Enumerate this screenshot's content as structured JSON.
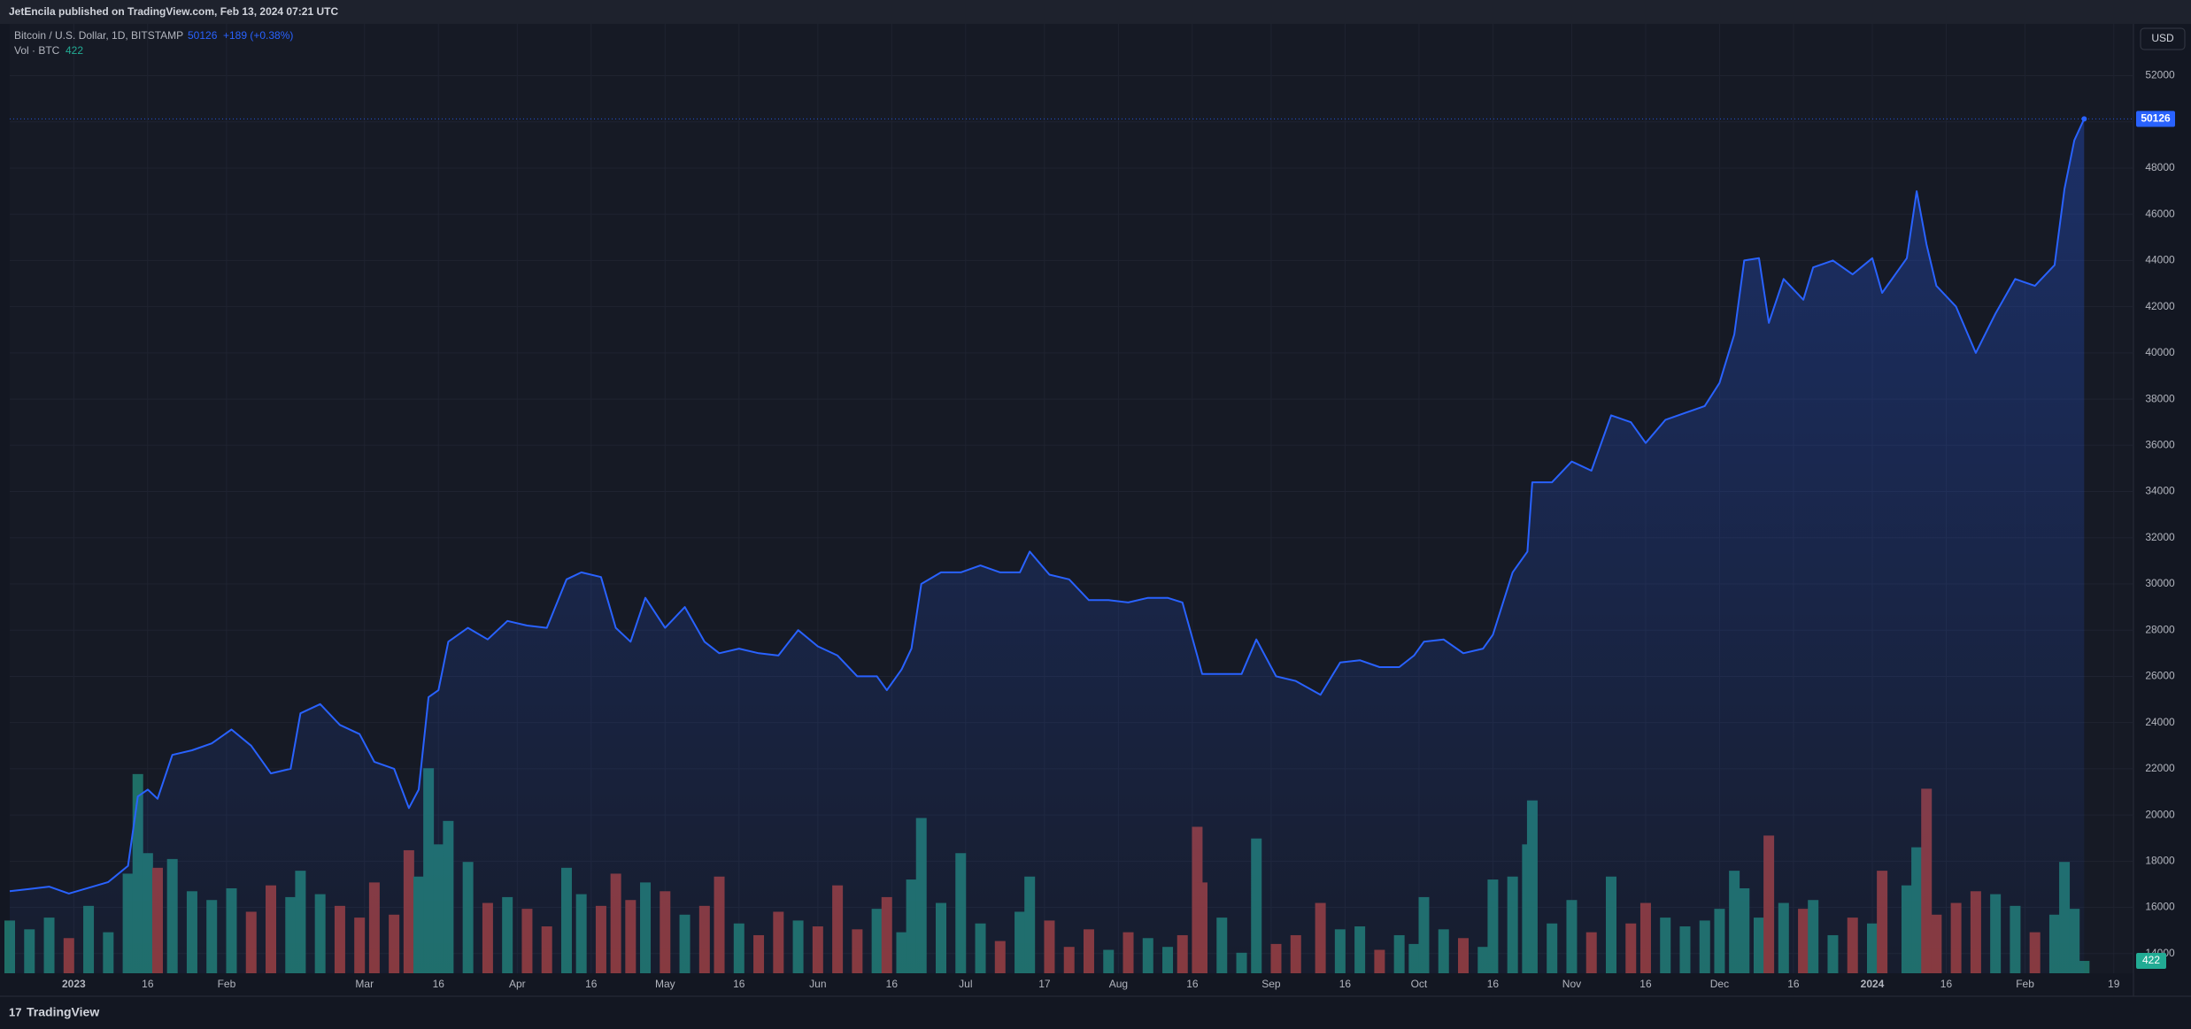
{
  "header": "JetEncila published on TradingView.com, Feb 13, 2024 07:21 UTC",
  "change": "+189 (+0.38%)",
  "currency": "USD",
  "footer": "TradingView",
  "chart_data": {
    "type": "area",
    "grid": true,
    "x": [
      "2022-12-19",
      "2022-12-23",
      "2022-12-27",
      "2022-12-31",
      "2023-01-04",
      "2023-01-08",
      "2023-01-12",
      "2023-01-14",
      "2023-01-16",
      "2023-01-18",
      "2023-01-21",
      "2023-01-25",
      "2023-01-29",
      "2023-02-02",
      "2023-02-06",
      "2023-02-10",
      "2023-02-14",
      "2023-02-16",
      "2023-02-20",
      "2023-02-24",
      "2023-02-28",
      "2023-03-03",
      "2023-03-07",
      "2023-03-10",
      "2023-03-12",
      "2023-03-14",
      "2023-03-16",
      "2023-03-18",
      "2023-03-22",
      "2023-03-26",
      "2023-03-30",
      "2023-04-03",
      "2023-04-07",
      "2023-04-11",
      "2023-04-14",
      "2023-04-18",
      "2023-04-21",
      "2023-04-24",
      "2023-04-27",
      "2023-05-01",
      "2023-05-05",
      "2023-05-09",
      "2023-05-12",
      "2023-05-16",
      "2023-05-20",
      "2023-05-24",
      "2023-05-28",
      "2023-06-01",
      "2023-06-05",
      "2023-06-09",
      "2023-06-13",
      "2023-06-15",
      "2023-06-18",
      "2023-06-20",
      "2023-06-22",
      "2023-06-26",
      "2023-06-30",
      "2023-07-04",
      "2023-07-08",
      "2023-07-12",
      "2023-07-14",
      "2023-07-18",
      "2023-07-22",
      "2023-07-26",
      "2023-07-30",
      "2023-08-03",
      "2023-08-07",
      "2023-08-11",
      "2023-08-14",
      "2023-08-17",
      "2023-08-18",
      "2023-08-22",
      "2023-08-26",
      "2023-08-29",
      "2023-09-02",
      "2023-09-06",
      "2023-09-11",
      "2023-09-15",
      "2023-09-19",
      "2023-09-23",
      "2023-09-27",
      "2023-09-30",
      "2023-10-02",
      "2023-10-06",
      "2023-10-10",
      "2023-10-14",
      "2023-10-16",
      "2023-10-20",
      "2023-10-23",
      "2023-10-24",
      "2023-10-28",
      "2023-11-01",
      "2023-11-05",
      "2023-11-09",
      "2023-11-13",
      "2023-11-16",
      "2023-11-20",
      "2023-11-24",
      "2023-11-28",
      "2023-12-01",
      "2023-12-04",
      "2023-12-06",
      "2023-12-09",
      "2023-12-11",
      "2023-12-14",
      "2023-12-18",
      "2023-12-20",
      "2023-12-24",
      "2023-12-28",
      "2024-01-01",
      "2024-01-03",
      "2024-01-08",
      "2024-01-10",
      "2024-01-12",
      "2024-01-14",
      "2024-01-18",
      "2024-01-22",
      "2024-01-26",
      "2024-01-30",
      "2024-02-03",
      "2024-02-07",
      "2024-02-09",
      "2024-02-11",
      "2024-02-13"
    ],
    "series": [
      {
        "name": "Bitcoin / U.S. Dollar, 1D, BITSTAMP",
        "type": "area",
        "color": "#2962ff",
        "values": [
          16700,
          16800,
          16900,
          16600,
          16850,
          17100,
          17800,
          20800,
          21100,
          20700,
          22600,
          22800,
          23100,
          23700,
          23000,
          21800,
          22000,
          24400,
          24800,
          23900,
          23500,
          22300,
          22000,
          20300,
          21100,
          25100,
          25400,
          27500,
          28100,
          27600,
          28400,
          28200,
          28100,
          30200,
          30500,
          30300,
          28100,
          27500,
          29400,
          28100,
          29000,
          27500,
          27000,
          27200,
          27000,
          26900,
          28000,
          27300,
          26900,
          26000,
          26000,
          25400,
          26300,
          27200,
          30000,
          30500,
          30500,
          30800,
          30500,
          30500,
          31400,
          30400,
          30200,
          29300,
          29300,
          29200,
          29400,
          29400,
          29200,
          26900,
          26100,
          26100,
          26100,
          27600,
          26000,
          25800,
          25200,
          26600,
          26700,
          26400,
          26400,
          26900,
          27500,
          27600,
          27000,
          27200,
          27800,
          30500,
          31400,
          34400,
          34400,
          35300,
          34900,
          37300,
          37000,
          36100,
          37100,
          37400,
          37700,
          38700,
          40800,
          44000,
          44100,
          41300,
          43200,
          42300,
          43700,
          44000,
          43400,
          44100,
          42600,
          44100,
          47000,
          44700,
          42900,
          42000,
          40000,
          41700,
          43200,
          42900,
          43800,
          47100,
          49200,
          50126
        ]
      },
      {
        "name": "Vol · BTC",
        "type": "bar",
        "up_color": "#1f6f66",
        "down_color": "#8a3838",
        "values": [
          1800,
          1500,
          1900,
          1200,
          2300,
          1400,
          3400,
          6800,
          4100,
          3600,
          3900,
          2800,
          2500,
          2900,
          2100,
          3000,
          2600,
          3500,
          2700,
          2300,
          1900,
          3100,
          2000,
          4200,
          3300,
          7000,
          4400,
          5200,
          3800,
          2400,
          2600,
          2200,
          1600,
          3600,
          2700,
          2300,
          3400,
          2500,
          3100,
          2800,
          2000,
          2300,
          3300,
          1700,
          1300,
          2100,
          1800,
          1600,
          3000,
          1500,
          2200,
          2600,
          1400,
          3200,
          5300,
          2400,
          4100,
          1700,
          1100,
          2100,
          3300,
          1800,
          900,
          1500,
          800,
          1400,
          1200,
          900,
          1300,
          5000,
          3100,
          1900,
          700,
          4600,
          1000,
          1300,
          2400,
          1500,
          1600,
          800,
          1300,
          1000,
          2600,
          1500,
          1200,
          900,
          3200,
          3300,
          4400,
          5900,
          1700,
          2500,
          1400,
          3300,
          1700,
          2400,
          1900,
          1600,
          1800,
          2200,
          3500,
          2900,
          1900,
          4700,
          2400,
          2200,
          2500,
          1300,
          1900,
          1700,
          3500,
          3000,
          4300,
          6300,
          2000,
          2400,
          2800,
          2700,
          2300,
          1400,
          2000,
          3800,
          2200,
          422
        ]
      }
    ],
    "xlim": [
      "2022-12-19",
      "2024-02-23"
    ],
    "xticks": [
      {
        "value": "2023-01-01",
        "label": "2023"
      },
      {
        "value": "2023-01-16",
        "label": "16"
      },
      {
        "value": "2023-02-01",
        "label": "Feb"
      },
      {
        "value": "2023-03-01",
        "label": "Mar"
      },
      {
        "value": "2023-03-16",
        "label": "16"
      },
      {
        "value": "2023-04-01",
        "label": "Apr"
      },
      {
        "value": "2023-04-16",
        "label": "16"
      },
      {
        "value": "2023-05-01",
        "label": "May"
      },
      {
        "value": "2023-05-16",
        "label": "16"
      },
      {
        "value": "2023-06-01",
        "label": "Jun"
      },
      {
        "value": "2023-06-16",
        "label": "16"
      },
      {
        "value": "2023-07-01",
        "label": "Jul"
      },
      {
        "value": "2023-07-17",
        "label": "17"
      },
      {
        "value": "2023-08-01",
        "label": "Aug"
      },
      {
        "value": "2023-08-16",
        "label": "16"
      },
      {
        "value": "2023-09-01",
        "label": "Sep"
      },
      {
        "value": "2023-09-16",
        "label": "16"
      },
      {
        "value": "2023-10-01",
        "label": "Oct"
      },
      {
        "value": "2023-10-16",
        "label": "16"
      },
      {
        "value": "2023-11-01",
        "label": "Nov"
      },
      {
        "value": "2023-11-16",
        "label": "16"
      },
      {
        "value": "2023-12-01",
        "label": "Dec"
      },
      {
        "value": "2023-12-16",
        "label": "16"
      },
      {
        "value": "2024-01-01",
        "label": "2024"
      },
      {
        "value": "2024-01-16",
        "label": "16"
      },
      {
        "value": "2024-02-01",
        "label": "Feb"
      },
      {
        "value": "2024-02-19",
        "label": "19"
      }
    ],
    "ylim": [
      13150,
      54240
    ],
    "yticks": [
      14000,
      16000,
      18000,
      20000,
      22000,
      24000,
      26000,
      28000,
      30000,
      32000,
      34000,
      36000,
      38000,
      40000,
      42000,
      44000,
      46000,
      48000,
      50000,
      52000
    ]
  }
}
